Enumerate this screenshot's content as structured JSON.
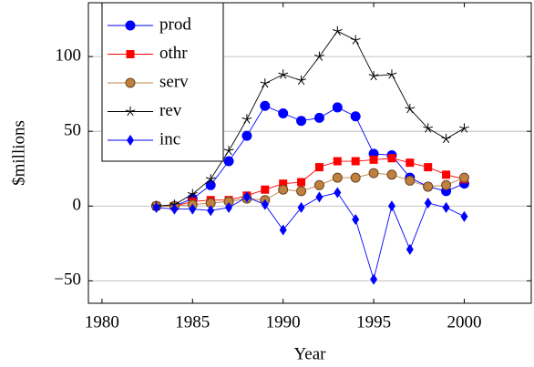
{
  "chart_data": {
    "type": "line",
    "xlabel": "Year",
    "ylabel": "$millions",
    "x": [
      1983,
      1984,
      1985,
      1986,
      1987,
      1988,
      1989,
      1990,
      1991,
      1992,
      1993,
      1994,
      1995,
      1996,
      1997,
      1998,
      1999,
      2000
    ],
    "series": [
      {
        "name": "prod",
        "color": "#0000ff",
        "marker": "circle",
        "values": [
          0,
          0,
          5,
          14,
          30,
          47,
          67,
          62,
          57,
          59,
          66,
          60,
          35,
          34,
          19,
          13,
          10,
          15
        ]
      },
      {
        "name": "othr",
        "color": "#ff0000",
        "marker": "square",
        "values": [
          0,
          0,
          3,
          4,
          4,
          7,
          11,
          15,
          16,
          26,
          30,
          30,
          31,
          32,
          29,
          26,
          21,
          18
        ]
      },
      {
        "name": "serv",
        "color": "#bf8040",
        "marker": "circle",
        "values": [
          0,
          0,
          1,
          2,
          3,
          5,
          4,
          11,
          10,
          14,
          19,
          19,
          22,
          21,
          17,
          13,
          14,
          19
        ]
      },
      {
        "name": "rev",
        "color": "#000000",
        "marker": "star",
        "values": [
          0,
          1,
          8,
          18,
          37,
          58,
          82,
          88,
          84,
          100,
          117,
          111,
          87,
          88,
          65,
          52,
          45,
          52
        ]
      },
      {
        "name": "inc",
        "color": "#0000ff",
        "marker": "diamond",
        "values": [
          -1,
          -2,
          -2,
          -3,
          -1,
          6,
          1,
          -16,
          -1,
          6,
          9,
          -9,
          -49,
          0,
          -29,
          2,
          -1,
          -7
        ]
      }
    ],
    "xlim": [
      1979.25,
      2003.7
    ],
    "xticks": [
      1980,
      1985,
      1990,
      1995,
      2000
    ],
    "ylim": [
      -65,
      136
    ],
    "yticks": [
      {
        "value": -50,
        "label": "−50"
      },
      0,
      50,
      100
    ],
    "grid": "y",
    "legend": "upper left"
  }
}
